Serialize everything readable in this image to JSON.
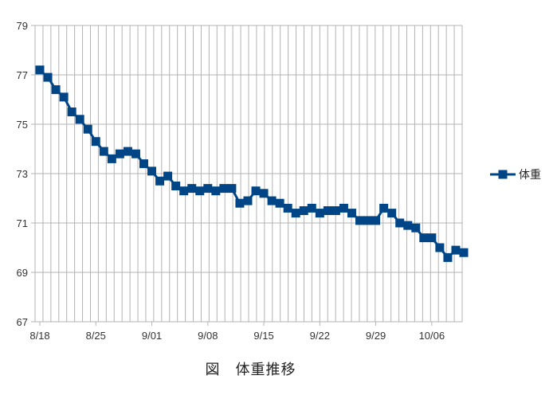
{
  "caption": "図　体重推移",
  "colors": {
    "series": "#004586",
    "grid": "#b3b3b3",
    "axis": "#b3b3b3",
    "background": "#ffffff"
  },
  "chart_data": {
    "type": "line",
    "title": "",
    "xlabel": "",
    "ylabel": "",
    "ylim": [
      67,
      79
    ],
    "y_ticks": [
      67,
      69,
      71,
      73,
      75,
      77,
      79
    ],
    "x_tick_labels": [
      "8/18",
      "8/25",
      "9/01",
      "9/08",
      "9/15",
      "9/22",
      "9/29",
      "10/06"
    ],
    "x_tick_every": 7,
    "grid": true,
    "legend_position": "right",
    "marker": "square",
    "series": [
      {
        "name": "体重",
        "values": [
          77.2,
          76.9,
          76.4,
          76.1,
          75.5,
          75.2,
          74.8,
          74.3,
          73.9,
          73.6,
          73.8,
          73.9,
          73.8,
          73.4,
          73.1,
          72.7,
          72.9,
          72.5,
          72.3,
          72.4,
          72.3,
          72.4,
          72.3,
          72.4,
          72.4,
          71.8,
          71.9,
          72.3,
          72.2,
          71.9,
          71.8,
          71.6,
          71.4,
          71.5,
          71.6,
          71.4,
          71.5,
          71.5,
          71.6,
          71.4,
          71.1,
          71.1,
          71.1,
          71.6,
          71.4,
          71.0,
          70.9,
          70.8,
          70.4,
          70.4,
          70.0,
          69.6,
          69.9,
          69.8
        ]
      }
    ]
  }
}
